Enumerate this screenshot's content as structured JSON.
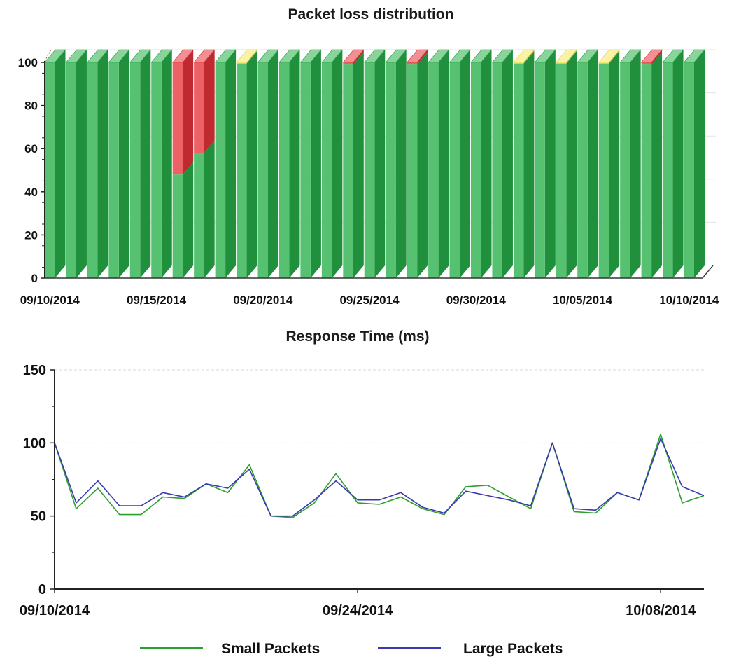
{
  "chart_data": [
    {
      "type": "bar",
      "stacked": true,
      "three_d": true,
      "title": "Packet loss distribution",
      "ylim": [
        0,
        100
      ],
      "yticks": [
        0,
        20,
        40,
        60,
        80,
        100
      ],
      "categories": [
        "09/10/2014",
        "09/11/2014",
        "09/12/2014",
        "09/13/2014",
        "09/14/2014",
        "09/15/2014",
        "09/16/2014",
        "09/17/2014",
        "09/18/2014",
        "09/19/2014",
        "09/20/2014",
        "09/21/2014",
        "09/22/2014",
        "09/23/2014",
        "09/24/2014",
        "09/25/2014",
        "09/26/2014",
        "09/27/2014",
        "09/28/2014",
        "09/29/2014",
        "09/30/2014",
        "10/01/2014",
        "10/02/2014",
        "10/03/2014",
        "10/04/2014",
        "10/05/2014",
        "10/06/2014",
        "10/07/2014",
        "10/08/2014",
        "10/09/2014",
        "10/10/2014"
      ],
      "xtick_labels": [
        "09/10/2014",
        "09/15/2014",
        "09/20/2014",
        "09/25/2014",
        "09/30/2014",
        "10/05/2014",
        "10/10/2014"
      ],
      "series": [
        {
          "color": "#27b04a",
          "values": [
            100,
            100,
            100,
            100,
            100,
            100,
            48,
            58,
            100,
            99.5,
            100,
            100,
            100,
            100,
            99,
            100,
            100,
            99,
            100,
            100,
            100,
            100,
            99.5,
            100,
            99.5,
            100,
            99.5,
            100,
            99,
            100,
            100
          ]
        },
        {
          "color": "#f5e85a",
          "values": [
            0,
            0,
            0,
            0,
            0,
            0,
            0,
            0,
            0,
            0.5,
            0,
            0,
            0,
            0,
            0,
            0,
            0,
            0,
            0,
            0,
            0,
            0,
            0.5,
            0,
            0.5,
            0,
            0.5,
            0,
            0,
            0,
            0
          ]
        },
        {
          "color": "#e8333a",
          "values": [
            0,
            0,
            0,
            0,
            0,
            0,
            52,
            42,
            0,
            0,
            0,
            0,
            0,
            0,
            1,
            0,
            0,
            1,
            0,
            0,
            0,
            0,
            0,
            0,
            0,
            0,
            0,
            0,
            1,
            0,
            0
          ]
        }
      ]
    },
    {
      "type": "line",
      "title": "Response Time (ms)",
      "ylim": [
        0,
        150
      ],
      "yticks": [
        0,
        50,
        100,
        150
      ],
      "xlim": [
        "09/10/2014",
        "10/10/2014"
      ],
      "xtick_labels": [
        "09/10/2014",
        "09/24/2014",
        "10/08/2014"
      ],
      "series": [
        {
          "name": "Small Packets",
          "color": "#2ca02c",
          "x": [
            "09/10/2014",
            "09/11/2014",
            "09/12/2014",
            "09/13/2014",
            "09/14/2014",
            "09/15/2014",
            "09/16/2014",
            "09/17/2014",
            "09/18/2014",
            "09/19/2014",
            "09/20/2014",
            "09/21/2014",
            "09/22/2014",
            "09/23/2014",
            "09/24/2014",
            "09/25/2014",
            "09/26/2014",
            "09/27/2014",
            "09/28/2014",
            "09/29/2014",
            "09/30/2014",
            "10/01/2014",
            "10/02/2014",
            "10/03/2014",
            "10/04/2014",
            "10/05/2014",
            "10/06/2014",
            "10/07/2014",
            "10/08/2014",
            "10/09/2014",
            "10/10/2014"
          ],
          "values": [
            100,
            55,
            69,
            51,
            51,
            63,
            62,
            72,
            66,
            85,
            50,
            49,
            59,
            79,
            59,
            58,
            63,
            55,
            51,
            70,
            71,
            63,
            55,
            100,
            53,
            52,
            66,
            61,
            106,
            59,
            64
          ]
        },
        {
          "name": "Large Packets",
          "color": "#3a3ab0",
          "x": [
            "09/10/2014",
            "09/11/2014",
            "09/12/2014",
            "09/13/2014",
            "09/14/2014",
            "09/15/2014",
            "09/16/2014",
            "09/17/2014",
            "09/18/2014",
            "09/19/2014",
            "09/20/2014",
            "09/21/2014",
            "09/22/2014",
            "09/23/2014",
            "09/24/2014",
            "09/25/2014",
            "09/26/2014",
            "09/27/2014",
            "09/28/2014",
            "09/29/2014",
            "09/30/2014",
            "10/01/2014",
            "10/02/2014",
            "10/03/2014",
            "10/04/2014",
            "10/05/2014",
            "10/06/2014",
            "10/07/2014",
            "10/08/2014",
            "10/09/2014",
            "10/10/2014"
          ],
          "values": [
            100,
            59,
            74,
            57,
            57,
            66,
            63,
            72,
            69,
            82,
            50,
            50,
            61,
            74,
            61,
            61,
            66,
            56,
            52,
            67,
            64,
            61,
            57,
            100,
            55,
            54,
            66,
            61,
            103,
            70,
            64
          ]
        }
      ],
      "legend": {
        "position": "bottom",
        "entries": [
          "Small Packets",
          "Large Packets"
        ]
      }
    }
  ]
}
